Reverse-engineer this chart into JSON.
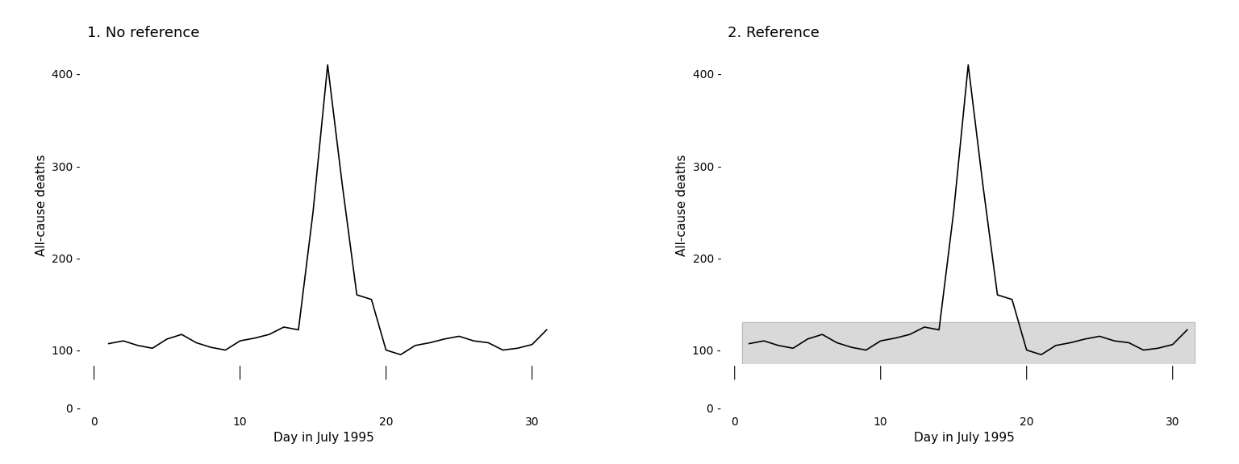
{
  "days": [
    1,
    2,
    3,
    4,
    5,
    6,
    7,
    8,
    9,
    10,
    11,
    12,
    13,
    14,
    15,
    16,
    17,
    18,
    19,
    20,
    21,
    22,
    23,
    24,
    25,
    26,
    27,
    28,
    29,
    30,
    31
  ],
  "deaths": [
    107,
    110,
    105,
    102,
    112,
    117,
    108,
    103,
    100,
    110,
    113,
    117,
    125,
    122,
    250,
    410,
    280,
    160,
    155,
    100,
    95,
    105,
    108,
    112,
    115,
    110,
    108,
    100,
    102,
    106,
    122
  ],
  "ref_ymin": 70,
  "ref_ymax": 130,
  "title_left": "1. No reference",
  "title_right": "2. Reference",
  "xlabel": "Day in July 1995",
  "ylabel": "All-cause deaths",
  "ylim_main_bottom": 85,
  "ylim_main_top": 430,
  "ylim_break_bottom": 0,
  "ylim_break_top": 10,
  "yticks_main": [
    100,
    200,
    300,
    400
  ],
  "ytick_zero": 0,
  "xticks": [
    0,
    10,
    20,
    30
  ],
  "line_color": "#000000",
  "shade_color": "#d9d9d9",
  "shade_edge_color": "#bbbbbb",
  "background_color": "#ffffff",
  "title_fontsize": 13,
  "axis_fontsize": 11,
  "tick_fontsize": 10
}
